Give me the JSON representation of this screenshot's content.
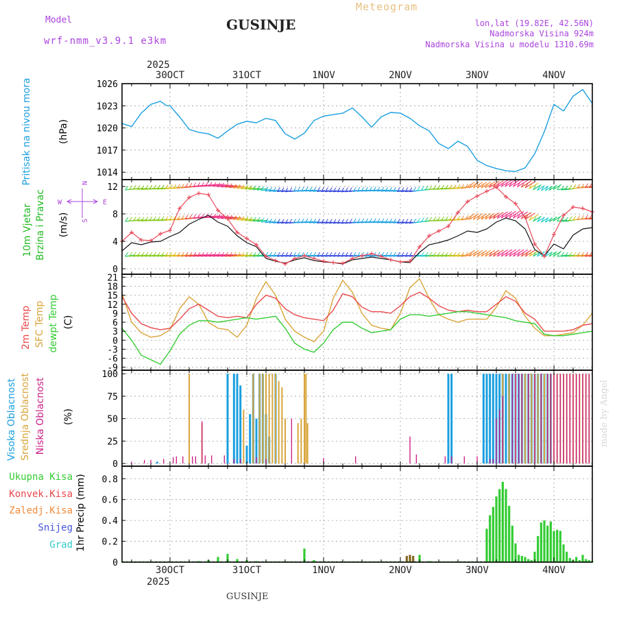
{
  "header": {
    "model_label": "Model",
    "model_name": "wrf-nmm_v3.9.1 e3km",
    "station": "GUSINJE",
    "meteogram": "Meteogram",
    "lonlat": "lon,lat (19.82E, 42.56N)",
    "elevation": "Nadmorska Visina 924m",
    "model_elevation": "Nadmorska Visina u modelu 1310.69m",
    "year_top": "2025",
    "footer_station": "GUSINJE",
    "watermark": "made by Angel"
  },
  "colors": {
    "pressure": "#1a9fe0",
    "wind_title": "#22bb22",
    "temp2m": "#e8474a",
    "sfc": "#d9a43a",
    "dewpt": "#33cc33",
    "cloud_high": "#1a9fe0",
    "cloud_mid": "#d9a43a",
    "cloud_low": "#cc2288",
    "precip": "#33cc33",
    "title_purple": "#aa44dd",
    "meteogram": "#e8c080"
  },
  "time_axis": {
    "day_labels": [
      "30OCT",
      "31OCT",
      "1NOV",
      "2NOV",
      "3NOV",
      "4NOV"
    ],
    "bottom_labels": [
      "30OCT",
      "31OCT",
      "1NOV",
      "2NOV",
      "3NOV",
      "4NOV"
    ],
    "year_bottom": "2025",
    "hours_start": -15,
    "hours_end": 132
  },
  "panels": [
    {
      "id": "pressure",
      "title": "Pritisak na nivou mora",
      "unit": "(hPa)",
      "yticks": [
        1014,
        1017,
        1020,
        1023,
        1026
      ],
      "ylim": [
        1013,
        1026
      ]
    },
    {
      "id": "wind",
      "title": "10m Vjetar",
      "title2": "Brzina i Pravac",
      "unit": "(m/s)",
      "yticks": [
        0,
        4,
        8,
        12
      ],
      "ylim": [
        -0.8,
        13
      ],
      "compass": {
        "n": "N",
        "s": "S",
        "e": "E",
        "w": "W"
      }
    },
    {
      "id": "temp",
      "title": "2m Temp",
      "title2": "SFC Temp",
      "title3": "dewpt Temp",
      "unit": "(C)",
      "yticks": [
        -9,
        -6,
        -3,
        0,
        3,
        6,
        9,
        12,
        15,
        18,
        21
      ],
      "ylim": [
        -10,
        22
      ]
    },
    {
      "id": "cloud",
      "title": "Visoka Oblacnost",
      "title2": "Srednja Oblacnost",
      "title3": "Niska Oblacnost",
      "unit": "(%)",
      "yticks": [
        0,
        25,
        50,
        75,
        100
      ],
      "ylim": [
        -3,
        104
      ]
    },
    {
      "id": "precip",
      "title": "1hr Precip (mm)",
      "yticks": [
        0,
        0.2,
        0.4,
        0.6,
        0.8
      ],
      "ylim": [
        0,
        0.92
      ],
      "legend": [
        "Ukupna Kisa",
        "Konvek.Kisa",
        "Zaledj.Kisa",
        "Snijeg",
        "Grad"
      ],
      "legend_colors": [
        "#33cc33",
        "#e8474a",
        "#f08a3a",
        "#4455dd",
        "#33cccc"
      ]
    }
  ],
  "chart_data": {
    "type": "line",
    "x_units": "hours since 2025-10-30 00:00",
    "pressure": {
      "x": [
        -15,
        -12,
        -9,
        -6,
        -3,
        -1,
        0,
        3,
        6,
        9,
        12,
        15,
        18,
        21,
        24,
        27,
        30,
        33,
        36,
        39,
        42,
        45,
        48,
        51,
        54,
        57,
        60,
        63,
        66,
        69,
        72,
        75,
        78,
        81,
        84,
        87,
        90,
        93,
        96,
        99,
        102,
        105,
        108,
        111,
        114,
        117,
        120,
        123,
        126,
        129,
        132
      ],
      "y": [
        1020.6,
        1020.2,
        1022.0,
        1023.2,
        1023.6,
        1023.0,
        1023.0,
        1021.5,
        1019.8,
        1019.4,
        1019.2,
        1018.6,
        1019.6,
        1020.5,
        1020.9,
        1020.7,
        1021.3,
        1021.0,
        1019.2,
        1018.5,
        1019.3,
        1021.0,
        1021.6,
        1021.8,
        1022.0,
        1022.7,
        1021.5,
        1020.1,
        1021.5,
        1022.1,
        1022.0,
        1021.3,
        1020.3,
        1019.6,
        1017.9,
        1017.2,
        1018.2,
        1017.5,
        1015.6,
        1014.9,
        1014.5,
        1014.2,
        1014.1,
        1014.6,
        1016.5,
        1019.5,
        1023.2,
        1022.3,
        1024.3,
        1025.2,
        1023.3
      ]
    },
    "wind_speed": {
      "x": [
        -15,
        -12,
        -9,
        -6,
        -3,
        0,
        3,
        6,
        9,
        12,
        15,
        18,
        21,
        24,
        27,
        30,
        33,
        36,
        39,
        42,
        45,
        48,
        51,
        54,
        57,
        60,
        63,
        66,
        69,
        72,
        75,
        78,
        81,
        84,
        87,
        90,
        93,
        96,
        99,
        102,
        105,
        108,
        111,
        114,
        117,
        120,
        123,
        126,
        129,
        132
      ],
      "y": [
        2.6,
        3.8,
        3.5,
        3.9,
        4.0,
        4.7,
        5.3,
        6.5,
        7.2,
        7.8,
        6.8,
        6.2,
        4.8,
        3.8,
        3.2,
        1.5,
        1.1,
        0.8,
        1.3,
        1.6,
        1.2,
        1.0,
        0.9,
        0.7,
        1.3,
        1.5,
        1.7,
        1.5,
        1.3,
        1.0,
        0.9,
        2.4,
        3.5,
        3.8,
        4.2,
        4.8,
        5.5,
        5.3,
        5.8,
        6.8,
        7.4,
        7.0,
        5.8,
        2.8,
        1.9,
        3.6,
        2.9,
        4.9,
        5.8,
        6.0
      ]
    },
    "wind_gust": {
      "x": [
        -15,
        -12,
        -9,
        -6,
        -3,
        0,
        3,
        6,
        9,
        12,
        15,
        18,
        21,
        24,
        27,
        30,
        33,
        36,
        39,
        42,
        45,
        48,
        51,
        54,
        57,
        60,
        63,
        66,
        69,
        72,
        75,
        78,
        81,
        84,
        87,
        90,
        93,
        96,
        99,
        102,
        105,
        108,
        111,
        114,
        117,
        120,
        123,
        126,
        129,
        132
      ],
      "y": [
        4.0,
        5.3,
        4.2,
        4.1,
        5.1,
        5.6,
        8.8,
        10.4,
        11.0,
        10.8,
        8.5,
        7.3,
        5.3,
        4.4,
        3.5,
        1.8,
        1.2,
        0.7,
        1.5,
        1.9,
        1.5,
        1.1,
        0.9,
        0.8,
        1.5,
        1.9,
        2.2,
        1.8,
        1.3,
        1.0,
        1.1,
        3.2,
        4.8,
        5.5,
        6.2,
        8.2,
        9.8,
        10.6,
        11.3,
        11.9,
        10.5,
        9.5,
        7.5,
        3.6,
        1.8,
        5.0,
        7.8,
        9.0,
        8.8,
        8.3
      ]
    },
    "temp2m": {
      "x": [
        -15,
        -12,
        -9,
        -6,
        -3,
        0,
        3,
        6,
        9,
        12,
        15,
        18,
        21,
        24,
        27,
        30,
        33,
        36,
        39,
        42,
        45,
        48,
        51,
        54,
        57,
        60,
        63,
        66,
        69,
        72,
        75,
        78,
        81,
        84,
        87,
        90,
        93,
        96,
        99,
        102,
        105,
        108,
        111,
        114,
        117,
        120,
        123,
        126,
        129,
        132
      ],
      "y": [
        14.5,
        9.0,
        5.5,
        4.2,
        3.5,
        4.0,
        7.0,
        10.5,
        12.0,
        10.0,
        8.0,
        7.5,
        8.0,
        7.5,
        12.0,
        15.0,
        14.0,
        10.5,
        8.5,
        7.5,
        7.0,
        6.5,
        10.0,
        15.5,
        14.5,
        11.0,
        9.5,
        9.5,
        9.0,
        11.5,
        14.5,
        16.0,
        14.0,
        11.5,
        10.0,
        9.5,
        10.0,
        9.5,
        9.5,
        12.0,
        14.5,
        13.0,
        9.0,
        7.0,
        3.0,
        3.0,
        3.0,
        3.5,
        5.0,
        5.5
      ]
    },
    "sfc_temp": {
      "x": [
        -15,
        -12,
        -9,
        -6,
        -3,
        0,
        3,
        6,
        9,
        12,
        15,
        18,
        21,
        24,
        27,
        30,
        33,
        36,
        39,
        42,
        45,
        48,
        51,
        54,
        57,
        60,
        63,
        66,
        69,
        72,
        75,
        78,
        81,
        84,
        87,
        90,
        93,
        96,
        99,
        102,
        105,
        108,
        111,
        114,
        117,
        120,
        123,
        126,
        129,
        132
      ],
      "y": [
        15.5,
        6.0,
        2.5,
        1.0,
        1.5,
        3.5,
        10.5,
        14.5,
        12.0,
        6.0,
        4.0,
        3.5,
        1.0,
        5.0,
        14.0,
        19.5,
        15.0,
        7.0,
        3.0,
        1.0,
        -0.5,
        3.0,
        14.0,
        20.0,
        16.0,
        9.0,
        5.0,
        4.0,
        3.5,
        9.0,
        17.5,
        20.5,
        14.0,
        8.5,
        7.0,
        6.0,
        7.0,
        7.0,
        7.0,
        11.0,
        16.5,
        14.0,
        8.0,
        4.0,
        1.5,
        1.5,
        2.0,
        2.5,
        5.0,
        9.0
      ]
    },
    "dewpt": {
      "x": [
        -15,
        -12,
        -9,
        -6,
        -3,
        0,
        3,
        6,
        9,
        12,
        15,
        18,
        21,
        24,
        27,
        30,
        33,
        36,
        39,
        42,
        45,
        48,
        51,
        54,
        57,
        60,
        63,
        66,
        69,
        72,
        75,
        78,
        81,
        84,
        87,
        90,
        93,
        96,
        99,
        102,
        105,
        108,
        111,
        114,
        117,
        120,
        123,
        126,
        129,
        132
      ],
      "y": [
        4.0,
        0.0,
        -5.0,
        -6.5,
        -8.0,
        -3.5,
        2.0,
        5.0,
        6.5,
        6.5,
        6.0,
        6.5,
        7.0,
        7.5,
        7.0,
        7.5,
        8.0,
        4.0,
        -1.0,
        -3.0,
        -4.0,
        -1.0,
        3.5,
        6.0,
        6.0,
        4.0,
        2.5,
        3.0,
        3.5,
        7.0,
        8.5,
        8.5,
        8.0,
        8.5,
        9.0,
        9.5,
        9.5,
        9.0,
        8.5,
        8.0,
        7.5,
        6.5,
        6.0,
        5.5,
        2.0,
        1.5,
        1.5,
        2.0,
        2.5,
        3.0
      ]
    },
    "cloud_high": {
      "x": [
        -4,
        18,
        20,
        21,
        22,
        24,
        25,
        26,
        27,
        28,
        29,
        30,
        31,
        33,
        87,
        88,
        98,
        99,
        100,
        101,
        102,
        103,
        104,
        105,
        106,
        107,
        108,
        109,
        110,
        111,
        112,
        113,
        114,
        115,
        116,
        117,
        118,
        119
      ],
      "y": [
        2,
        100,
        100,
        100,
        87,
        20,
        55,
        100,
        50,
        100,
        100,
        55,
        30,
        100,
        100,
        100,
        100,
        100,
        100,
        100,
        100,
        100,
        100,
        100,
        100,
        100,
        100,
        100,
        100,
        100,
        100,
        100,
        100,
        100,
        100,
        100,
        100,
        100
      ]
    },
    "cloud_mid": {
      "x": [
        6,
        10,
        23,
        26,
        28,
        29,
        30,
        31,
        32,
        33,
        34,
        35,
        36,
        40,
        41,
        42,
        42.5,
        43,
        104,
        106,
        108,
        110,
        111,
        112,
        113,
        114,
        115,
        116,
        117,
        118,
        119,
        120,
        121,
        122,
        123,
        124,
        125,
        126,
        127,
        128,
        129,
        130,
        131
      ],
      "y": [
        100,
        45,
        60,
        100,
        100,
        100,
        100,
        100,
        100,
        100,
        92,
        85,
        50,
        45,
        50,
        100,
        100,
        45,
        100,
        100,
        100,
        100,
        100,
        100,
        100,
        100,
        100,
        100,
        100,
        100,
        100,
        100,
        100,
        100,
        100,
        100,
        100,
        100,
        100,
        100,
        100,
        100,
        100
      ]
    },
    "cloud_low": {
      "x": [
        -12,
        -8,
        -6,
        -2,
        1,
        2,
        4,
        7,
        8,
        10,
        11,
        13,
        17,
        20,
        22,
        27,
        30,
        38,
        48,
        58,
        75,
        77,
        86,
        88,
        92,
        96,
        100,
        101,
        102,
        103,
        104,
        107,
        108,
        109,
        110,
        112,
        114,
        116,
        118,
        119,
        120,
        121,
        122,
        123,
        124,
        125,
        126,
        127,
        128,
        129,
        130,
        131
      ],
      "y": [
        2,
        4,
        4,
        5,
        7,
        8,
        8,
        8,
        8,
        47,
        9,
        9,
        9,
        5,
        5,
        7,
        5,
        50,
        6,
        8,
        30,
        10,
        8,
        8,
        8,
        8,
        5,
        5,
        50,
        60,
        75,
        100,
        100,
        100,
        100,
        100,
        100,
        100,
        100,
        100,
        100,
        100,
        100,
        100,
        100,
        100,
        100,
        100,
        100,
        100,
        100,
        100
      ]
    },
    "precip": {
      "x": [
        -15,
        -12,
        -9,
        -6,
        -3,
        0,
        3,
        6,
        9,
        12,
        15,
        18,
        21,
        24,
        27,
        30,
        33,
        36,
        39,
        42,
        45,
        48,
        51,
        54,
        57,
        60,
        63,
        66,
        69,
        72,
        75,
        78,
        81,
        84,
        87,
        90,
        93,
        96,
        97,
        98,
        99,
        100,
        101,
        102,
        103,
        104,
        105,
        106,
        107,
        108,
        109,
        110,
        111,
        112,
        113,
        114,
        115,
        116,
        117,
        118,
        119,
        120,
        121,
        122,
        123,
        124,
        125,
        126,
        127,
        128,
        129,
        130,
        131,
        132
      ],
      "y": [
        0,
        0,
        0,
        0,
        0,
        0,
        0,
        0.005,
        0.01,
        0.02,
        0.05,
        0.08,
        0.03,
        0.02,
        0.01,
        0.005,
        0,
        0,
        0,
        0.13,
        0.02,
        0,
        0,
        0,
        0,
        0,
        0,
        0,
        0,
        0,
        0.05,
        0.07,
        0.01,
        0,
        0,
        0,
        0,
        0,
        0,
        0,
        0.32,
        0.45,
        0.53,
        0.63,
        0.7,
        0.77,
        0.7,
        0.54,
        0.35,
        0.18,
        0.07,
        0.06,
        0.05,
        0.03,
        0.02,
        0.1,
        0.25,
        0.38,
        0.4,
        0.35,
        0.39,
        0.3,
        0.31,
        0.3,
        0.17,
        0.1,
        0.04,
        0.02,
        0.05,
        0.02,
        0.07,
        0.03,
        0.02,
        0.01
      ]
    },
    "precip_snow": {
      "x": [
        74,
        75,
        76
      ],
      "y": [
        0.06,
        0.07,
        0.06
      ]
    }
  }
}
